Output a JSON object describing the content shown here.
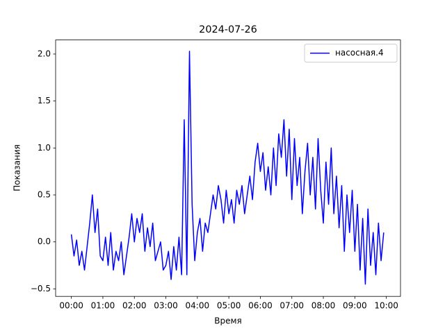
{
  "chart_data": {
    "type": "line",
    "title": "2024-07-26",
    "x_label": "Время",
    "y_label": "Показания",
    "x": [
      0,
      5,
      10,
      15,
      20,
      25,
      30,
      35,
      40,
      45,
      50,
      55,
      60,
      65,
      70,
      75,
      80,
      85,
      90,
      95,
      100,
      105,
      110,
      115,
      120,
      125,
      130,
      135,
      140,
      145,
      150,
      155,
      160,
      165,
      170,
      175,
      180,
      185,
      190,
      195,
      200,
      205,
      210,
      215,
      220,
      225,
      230,
      235,
      240,
      245,
      250,
      255,
      260,
      265,
      270,
      275,
      280,
      285,
      290,
      295,
      300,
      305,
      310,
      315,
      320,
      325,
      330,
      335,
      340,
      345,
      350,
      355,
      360,
      365,
      370,
      375,
      380,
      385,
      390,
      395,
      400,
      405,
      410,
      415,
      420,
      425,
      430,
      435,
      440,
      445,
      450,
      455,
      460,
      465,
      470,
      475,
      480,
      485,
      490,
      495,
      500,
      505,
      510,
      515,
      520,
      525,
      530,
      535,
      540,
      545,
      550,
      555,
      560,
      565,
      570,
      575,
      580,
      585,
      590,
      595
    ],
    "series": [
      {
        "name": "насосная.4",
        "color": "#0000ff",
        "values": [
          0.08,
          -0.15,
          0.02,
          -0.25,
          -0.1,
          -0.3,
          -0.05,
          0.2,
          0.5,
          0.1,
          0.35,
          -0.15,
          -0.2,
          0.05,
          -0.25,
          0.1,
          -0.3,
          -0.1,
          -0.2,
          0.0,
          -0.35,
          -0.15,
          0.05,
          0.3,
          0.0,
          0.25,
          0.1,
          0.3,
          -0.1,
          0.15,
          -0.05,
          0.2,
          -0.2,
          -0.1,
          0.0,
          -0.3,
          -0.25,
          -0.1,
          -0.4,
          -0.05,
          -0.3,
          0.05,
          -0.35,
          1.3,
          -0.35,
          2.03,
          0.4,
          -0.2,
          0.1,
          0.25,
          -0.1,
          0.2,
          0.1,
          0.3,
          0.5,
          0.35,
          0.6,
          0.45,
          0.2,
          0.55,
          0.3,
          0.45,
          0.2,
          0.55,
          0.4,
          0.6,
          0.3,
          0.5,
          0.7,
          0.45,
          0.85,
          1.05,
          0.75,
          0.95,
          0.55,
          0.8,
          0.5,
          1.0,
          0.6,
          1.15,
          0.9,
          1.3,
          0.7,
          1.2,
          0.45,
          1.1,
          0.6,
          0.9,
          0.3,
          0.75,
          1.05,
          0.5,
          0.9,
          0.35,
          1.1,
          0.55,
          0.2,
          0.85,
          0.4,
          1.0,
          0.3,
          0.7,
          0.15,
          0.6,
          -0.1,
          0.5,
          0.1,
          0.55,
          -0.1,
          0.4,
          -0.3,
          0.25,
          -0.45,
          0.35,
          -0.25,
          0.1,
          -0.35,
          0.2,
          -0.2,
          0.1
        ]
      }
    ],
    "xlim": [
      -30,
      627
    ],
    "ylim": [
      -0.58,
      2.15
    ],
    "xticks": [
      {
        "value": 0,
        "label": "00:00"
      },
      {
        "value": 60,
        "label": "01:00"
      },
      {
        "value": 120,
        "label": "02:00"
      },
      {
        "value": 180,
        "label": "03:00"
      },
      {
        "value": 240,
        "label": "04:00"
      },
      {
        "value": 300,
        "label": "05:00"
      },
      {
        "value": 360,
        "label": "06:00"
      },
      {
        "value": 420,
        "label": "07:00"
      },
      {
        "value": 480,
        "label": "08:00"
      },
      {
        "value": 540,
        "label": "09:00"
      },
      {
        "value": 600,
        "label": "10:00"
      }
    ],
    "yticks": [
      {
        "value": -0.5,
        "label": "−0.5"
      },
      {
        "value": 0,
        "label": "0.0"
      },
      {
        "value": 0.5,
        "label": "0.5"
      },
      {
        "value": 1,
        "label": "1.0"
      },
      {
        "value": 1.5,
        "label": "1.5"
      },
      {
        "value": 2,
        "label": "2.0"
      }
    ],
    "legend": "upper right"
  }
}
